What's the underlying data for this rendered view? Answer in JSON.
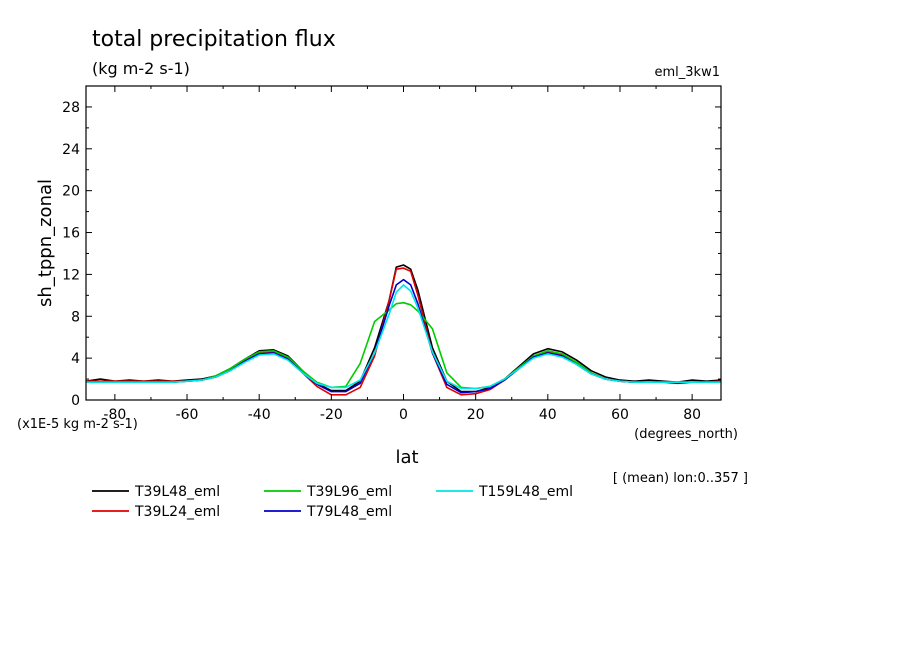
{
  "chart_data": {
    "type": "line",
    "title": "total precipitation flux",
    "units": "(kg m-2 s-1)",
    "experiment": "eml_3kw1",
    "xlabel": "lat",
    "xunits": "(degrees_north)",
    "ylabel": "sh_tppn_zonal",
    "yscale_note": "(x1E-5 kg m-2 s-1)",
    "footnote": "[ (mean) lon:0..357 ]",
    "xlim": [
      -88,
      88
    ],
    "ylim": [
      0,
      30
    ],
    "xticks": [
      -80,
      -60,
      -40,
      -20,
      0,
      20,
      40,
      60,
      80
    ],
    "yticks": [
      0,
      4,
      8,
      12,
      16,
      20,
      24,
      28
    ],
    "xtick_labels": [
      "-80",
      "-60",
      "-40",
      "-20",
      "0",
      "20",
      "40",
      "60",
      "80"
    ],
    "ytick_labels": [
      "0",
      "4",
      "8",
      "12",
      "16",
      "20",
      "24",
      "28"
    ],
    "grid": false,
    "legend_position": "bottom",
    "x": [
      -88,
      -84,
      -80,
      -76,
      -72,
      -68,
      -64,
      -60,
      -56,
      -52,
      -48,
      -44,
      -40,
      -36,
      -32,
      -28,
      -24,
      -20,
      -16,
      -12,
      -8,
      -4,
      -2,
      0,
      2,
      4,
      8,
      12,
      16,
      20,
      24,
      28,
      32,
      36,
      40,
      44,
      48,
      52,
      56,
      60,
      64,
      68,
      72,
      76,
      80,
      84,
      88
    ],
    "series": [
      {
        "name": "T39L48_eml",
        "color": "#000000",
        "values": [
          1.8,
          2.0,
          1.8,
          1.9,
          1.8,
          1.9,
          1.8,
          1.9,
          2.0,
          2.3,
          3.0,
          3.9,
          4.7,
          4.8,
          4.2,
          2.8,
          1.6,
          0.9,
          0.9,
          1.8,
          5.0,
          9.5,
          12.7,
          12.9,
          12.5,
          10.5,
          5.0,
          1.8,
          0.8,
          0.8,
          1.2,
          2.0,
          3.2,
          4.4,
          4.9,
          4.6,
          3.8,
          2.8,
          2.2,
          1.9,
          1.8,
          1.9,
          1.8,
          1.7,
          1.9,
          1.8,
          1.9
        ]
      },
      {
        "name": "T39L24_eml",
        "color": "#e00000",
        "values": [
          1.8,
          1.8,
          1.8,
          1.8,
          1.8,
          1.8,
          1.8,
          1.8,
          1.9,
          2.2,
          2.9,
          3.8,
          4.5,
          4.6,
          4.0,
          2.6,
          1.3,
          0.5,
          0.5,
          1.2,
          4.2,
          9.5,
          12.5,
          12.6,
          12.3,
          10.0,
          4.5,
          1.2,
          0.5,
          0.6,
          1.0,
          1.9,
          3.1,
          4.2,
          4.6,
          4.3,
          3.5,
          2.6,
          2.0,
          1.8,
          1.7,
          1.7,
          1.7,
          1.7,
          1.7,
          1.7,
          1.8
        ]
      },
      {
        "name": "T39L96_eml",
        "color": "#00cc00",
        "values": [
          1.7,
          1.7,
          1.7,
          1.7,
          1.7,
          1.7,
          1.7,
          1.8,
          1.9,
          2.3,
          3.0,
          3.9,
          4.6,
          4.7,
          4.1,
          2.8,
          1.7,
          1.2,
          1.3,
          3.5,
          7.5,
          8.6,
          9.2,
          9.3,
          9.1,
          8.5,
          6.8,
          2.6,
          1.2,
          1.1,
          1.3,
          2.0,
          3.1,
          4.2,
          4.7,
          4.4,
          3.6,
          2.6,
          2.0,
          1.8,
          1.7,
          1.7,
          1.7,
          1.7,
          1.7,
          1.7,
          1.7
        ]
      },
      {
        "name": "T79L48_eml",
        "color": "#0000cc",
        "values": [
          1.7,
          1.7,
          1.7,
          1.7,
          1.7,
          1.7,
          1.7,
          1.8,
          1.9,
          2.2,
          2.8,
          3.7,
          4.4,
          4.5,
          3.9,
          2.6,
          1.5,
          0.8,
          0.8,
          1.6,
          4.5,
          9.0,
          11.0,
          11.5,
          11.0,
          9.2,
          4.5,
          1.5,
          0.7,
          0.8,
          1.1,
          1.9,
          3.0,
          4.1,
          4.5,
          4.2,
          3.4,
          2.5,
          2.0,
          1.8,
          1.7,
          1.7,
          1.7,
          1.6,
          1.7,
          1.7,
          1.7
        ]
      },
      {
        "name": "T159L48_eml",
        "color": "#00e5e5",
        "values": [
          1.7,
          1.7,
          1.7,
          1.7,
          1.7,
          1.7,
          1.7,
          1.8,
          1.9,
          2.2,
          2.8,
          3.6,
          4.3,
          4.4,
          3.8,
          2.6,
          1.6,
          1.2,
          1.2,
          1.9,
          4.5,
          8.2,
          10.3,
          11.0,
          10.4,
          8.8,
          4.6,
          1.8,
          1.1,
          1.1,
          1.3,
          2.0,
          3.0,
          4.0,
          4.4,
          4.1,
          3.4,
          2.5,
          2.0,
          1.8,
          1.7,
          1.7,
          1.7,
          1.7,
          1.7,
          1.7,
          1.7
        ]
      }
    ]
  }
}
